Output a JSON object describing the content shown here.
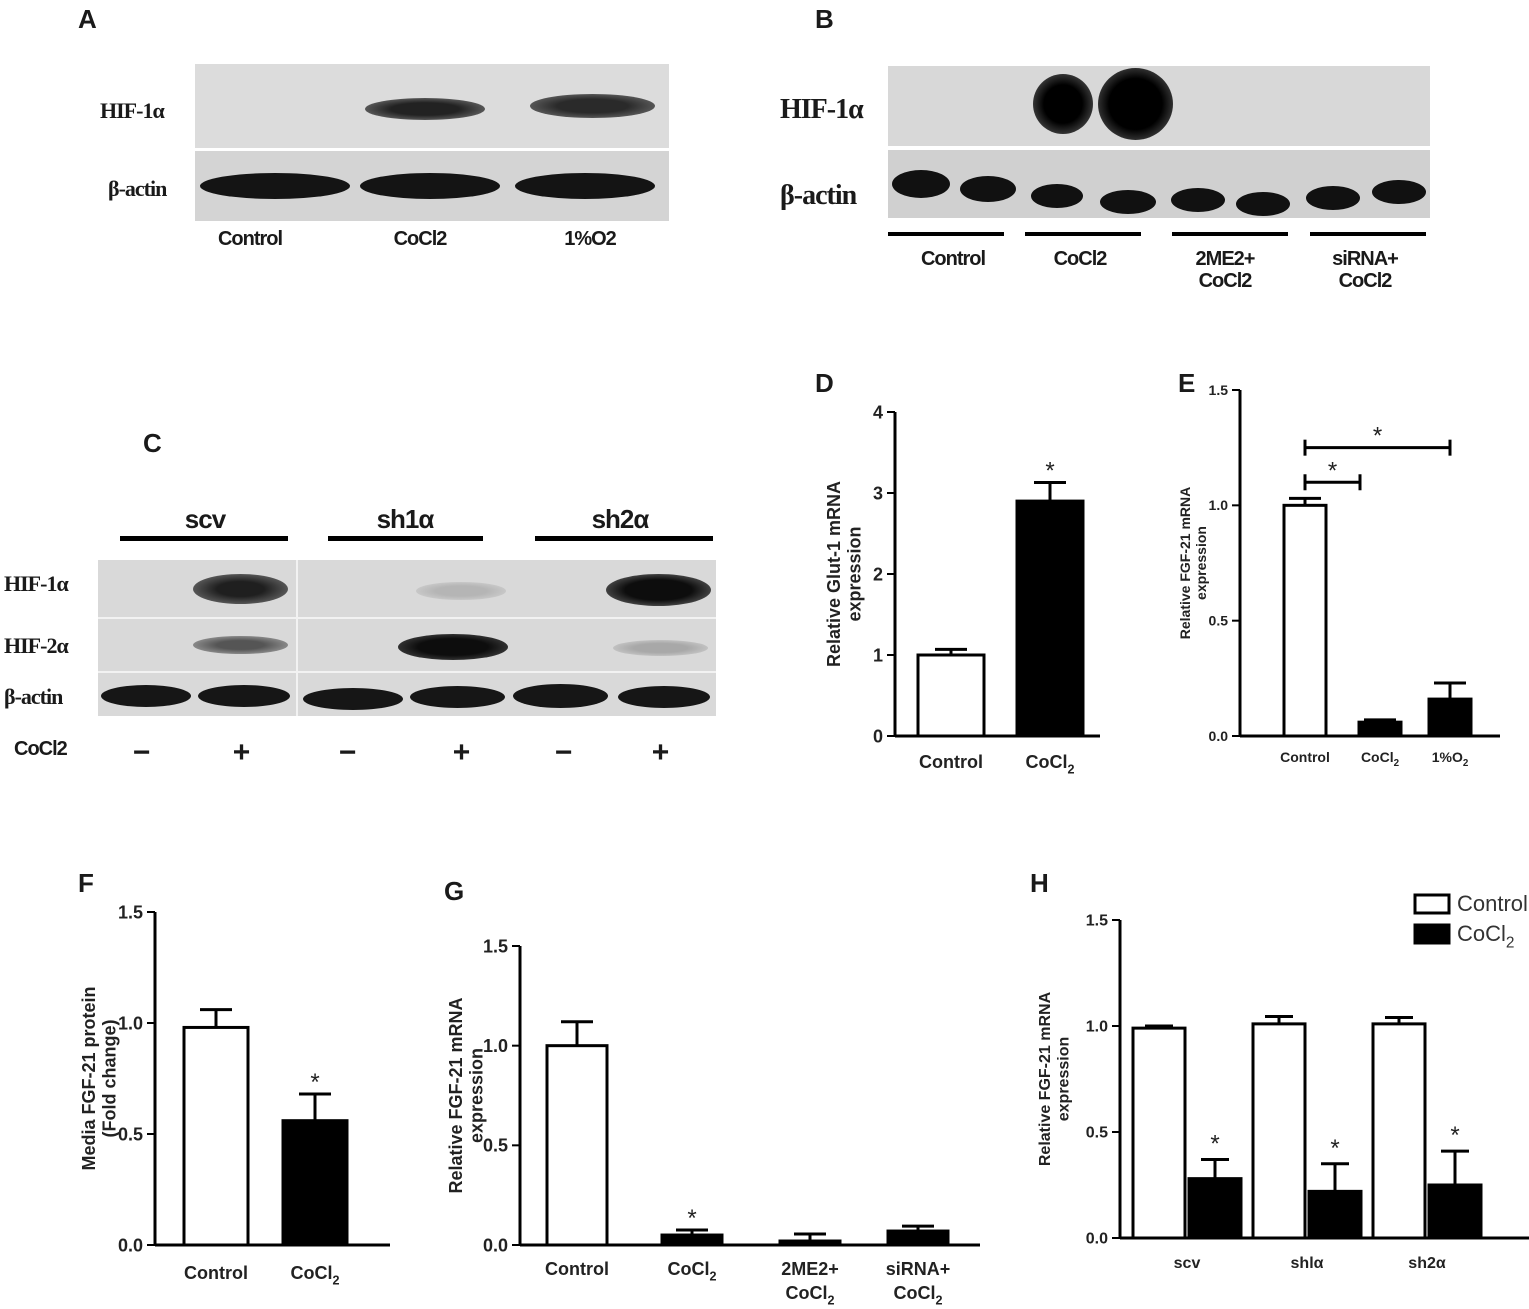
{
  "panelA": {
    "letter": "A",
    "rows": [
      "HIF-1α",
      "β-actin"
    ],
    "lanes": [
      "Control",
      "CoCl2",
      "1%O2"
    ]
  },
  "panelB": {
    "letter": "B",
    "rows": [
      "HIF-1α",
      "β-actin"
    ],
    "groups": [
      {
        "line1": "Control",
        "line2": ""
      },
      {
        "line1": "CoCl2",
        "line2": ""
      },
      {
        "line1": "2ME2+",
        "line2": "CoCl2"
      },
      {
        "line1": "siRNA+",
        "line2": "CoCl2"
      }
    ]
  },
  "panelC": {
    "letter": "C",
    "groups": [
      "scv",
      "sh1α",
      "sh2α"
    ],
    "rows": [
      "HIF-1α",
      "HIF-2α",
      "β-actin"
    ],
    "treatment_label": "CoCl2",
    "signs": [
      "−",
      "+",
      "−",
      "+",
      "−",
      "+"
    ]
  },
  "chart_data": [
    {
      "panel": "D",
      "type": "bar",
      "categories": [
        "Control",
        "CoCl2"
      ],
      "values": [
        1.0,
        2.9
      ],
      "errors": [
        0.07,
        0.23
      ],
      "significance": [
        "",
        "*"
      ],
      "ylabel": "Relative Glut-1 mRNA expression",
      "ylim": [
        0,
        4
      ],
      "yticks": [
        "0",
        "1",
        "2",
        "3",
        "4"
      ],
      "bar_colors": [
        "#ffffff",
        "#000000"
      ]
    },
    {
      "panel": "E",
      "type": "bar",
      "categories": [
        "Control",
        "CoCl2",
        "1%O2"
      ],
      "values": [
        1.0,
        0.06,
        0.16
      ],
      "errors": [
        0.03,
        0.01,
        0.07
      ],
      "significance_brackets": [
        "*",
        "*"
      ],
      "ylabel": "Relative FGF-21 mRNA expression",
      "ylim": [
        0,
        1.5
      ],
      "yticks": [
        "0.0",
        "0.5",
        "1.0",
        "1.5"
      ],
      "bar_colors": [
        "#ffffff",
        "#000000",
        "#000000"
      ]
    },
    {
      "panel": "F",
      "type": "bar",
      "categories": [
        "Control",
        "CoCl2"
      ],
      "values": [
        0.98,
        0.56
      ],
      "errors": [
        0.08,
        0.12
      ],
      "significance": [
        "",
        "*"
      ],
      "ylabel": "Media FGF-21 protein (Fold change)",
      "ylim": [
        0,
        1.5
      ],
      "yticks": [
        "0.0",
        "0.5",
        "1.0",
        "1.5"
      ],
      "bar_colors": [
        "#ffffff",
        "#000000"
      ]
    },
    {
      "panel": "G",
      "type": "bar",
      "categories": [
        "Control",
        "CoCl2",
        "2ME2+ CoCl2",
        "siRNA+ CoCl2"
      ],
      "values": [
        1.0,
        0.05,
        0.02,
        0.07
      ],
      "errors": [
        0.12,
        0.025,
        0.035,
        0.025
      ],
      "significance": [
        "",
        "*",
        "",
        ""
      ],
      "ylabel": "Relative FGF-21 mRNA expression",
      "ylim": [
        0,
        1.5
      ],
      "yticks": [
        "0.0",
        "0.5",
        "1.0",
        "1.5"
      ],
      "bar_colors": [
        "#ffffff",
        "#000000",
        "#000000",
        "#000000"
      ]
    },
    {
      "panel": "H",
      "type": "bar",
      "categories": [
        "scv",
        "shlα",
        "sh2α"
      ],
      "series": [
        {
          "name": "Control",
          "values": [
            0.99,
            1.01,
            1.01
          ],
          "errors": [
            0.01,
            0.035,
            0.03
          ],
          "color": "#ffffff"
        },
        {
          "name": "CoCl2",
          "values": [
            0.28,
            0.22,
            0.25
          ],
          "errors": [
            0.09,
            0.13,
            0.16
          ],
          "color": "#000000"
        }
      ],
      "significance": [
        "*",
        "*",
        "*"
      ],
      "ylabel": "Relative FGF-21 mRNA expression",
      "ylim": [
        0,
        1.5
      ],
      "yticks": [
        "0.0",
        "0.5",
        "1.0",
        "1.5"
      ],
      "legend": "top-right"
    }
  ]
}
